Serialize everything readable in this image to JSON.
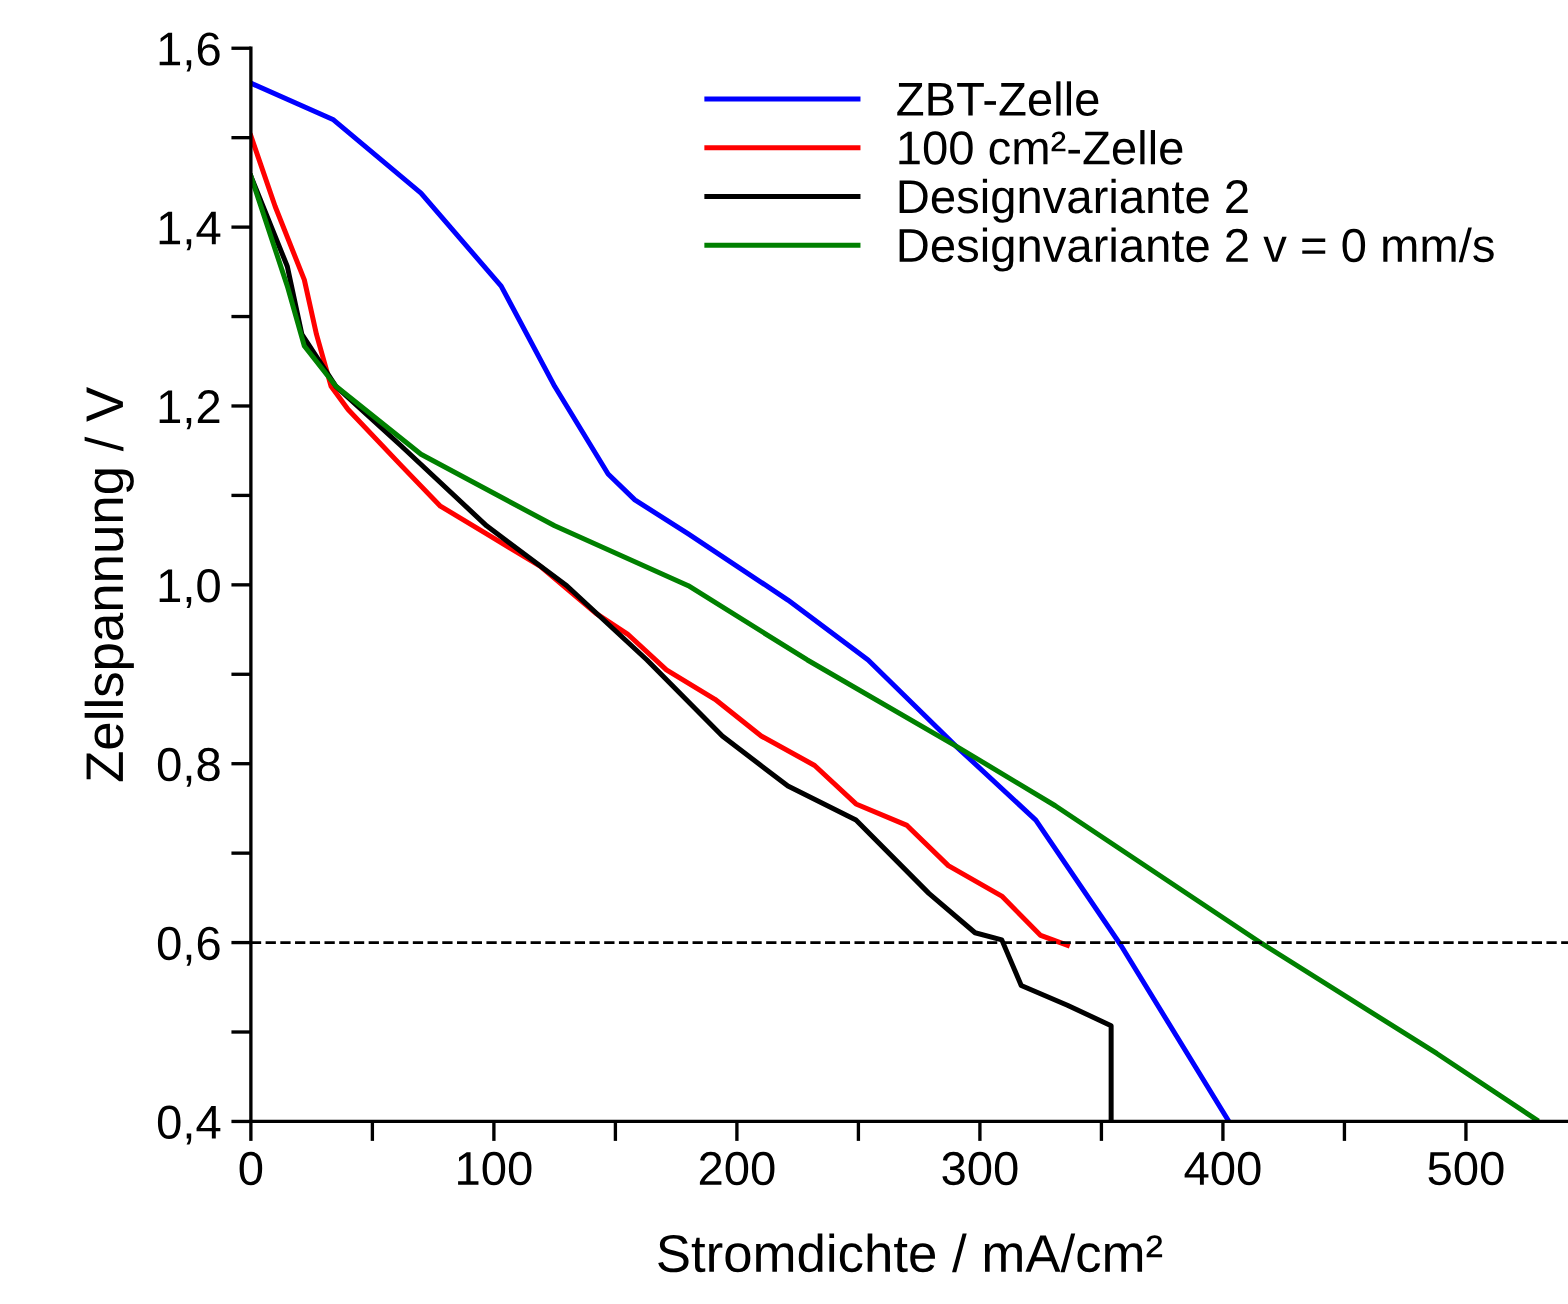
{
  "chart_data": {
    "type": "line",
    "xlabel": "Stromdichte / mA/cm²",
    "ylabel": "Zellspannung / V",
    "xlim": [
      0,
      542
    ],
    "ylim": [
      0.4,
      1.6
    ],
    "xticks": [
      0,
      {
        "value": 50,
        "label": null
      },
      100,
      {
        "value": 150,
        "label": null
      },
      200,
      {
        "value": 250,
        "label": null
      },
      300,
      {
        "value": 350,
        "label": null
      },
      400,
      {
        "value": 450,
        "label": null
      },
      500
    ],
    "yticks": [
      {
        "value": 0.4,
        "label": "0,4"
      },
      {
        "value": 0.5,
        "label": null
      },
      {
        "value": 0.6,
        "label": "0,6"
      },
      {
        "value": 0.7,
        "label": null
      },
      {
        "value": 0.8,
        "label": "0,8"
      },
      {
        "value": 0.9,
        "label": null
      },
      {
        "value": 1.0,
        "label": "1,0"
      },
      {
        "value": 1.1,
        "label": null
      },
      {
        "value": 1.2,
        "label": "1,2"
      },
      {
        "value": 1.3,
        "label": null
      },
      {
        "value": 1.4,
        "label": "1,4"
      },
      {
        "value": 1.5,
        "label": null
      },
      {
        "value": 1.6,
        "label": "1,6"
      }
    ],
    "grid": false,
    "legend": "top right",
    "marker": "none",
    "line_style": "solid",
    "ref_lines": [
      {
        "axis": "y",
        "value": 0.6,
        "color": "#000000",
        "line_style": "dashed"
      }
    ],
    "series": [
      {
        "name": "ZBT-Zelle",
        "color": "#0000ff",
        "x": [
          0,
          34,
          70,
          103,
          125,
          147,
          158,
          180,
          221,
          254,
          290,
          323,
          358,
          402
        ],
        "values": [
          1.561,
          1.52,
          1.438,
          1.334,
          1.222,
          1.124,
          1.095,
          1.057,
          0.983,
          0.916,
          0.82,
          0.737,
          0.597,
          0.402
        ]
      },
      {
        "name": "100 cm²-Zelle",
        "color": "#ff0000",
        "x": [
          0,
          10,
          22,
          27,
          33,
          40,
          62,
          78,
          97,
          119,
          142,
          155,
          171,
          191,
          210,
          232,
          249,
          270,
          287,
          309,
          325,
          336
        ],
        "values": [
          1.502,
          1.423,
          1.341,
          1.28,
          1.222,
          1.196,
          1.133,
          1.088,
          1.057,
          1.021,
          0.968,
          0.945,
          0.905,
          0.872,
          0.831,
          0.798,
          0.755,
          0.731,
          0.686,
          0.652,
          0.608,
          0.597
        ]
      },
      {
        "name": "Designvariante 2",
        "color": "#000000",
        "x": [
          0,
          15,
          21,
          35,
          62,
          97,
          130,
          163,
          194,
          221,
          249,
          279,
          298,
          309,
          317,
          336,
          354,
          354
        ],
        "values": [
          1.457,
          1.356,
          1.28,
          1.222,
          1.155,
          1.066,
          0.999,
          0.916,
          0.831,
          0.775,
          0.737,
          0.655,
          0.611,
          0.603,
          0.552,
          0.53,
          0.507,
          0.402
        ]
      },
      {
        "name": "Designvariante 2 v = 0 mm/s",
        "color": "#008000",
        "x": [
          0,
          15,
          22,
          35,
          70,
          125,
          180,
          229,
          290,
          331,
          416,
          488,
          529
        ],
        "values": [
          1.457,
          1.334,
          1.267,
          1.222,
          1.146,
          1.066,
          0.999,
          0.916,
          0.82,
          0.753,
          0.599,
          0.476,
          0.402
        ]
      }
    ]
  }
}
